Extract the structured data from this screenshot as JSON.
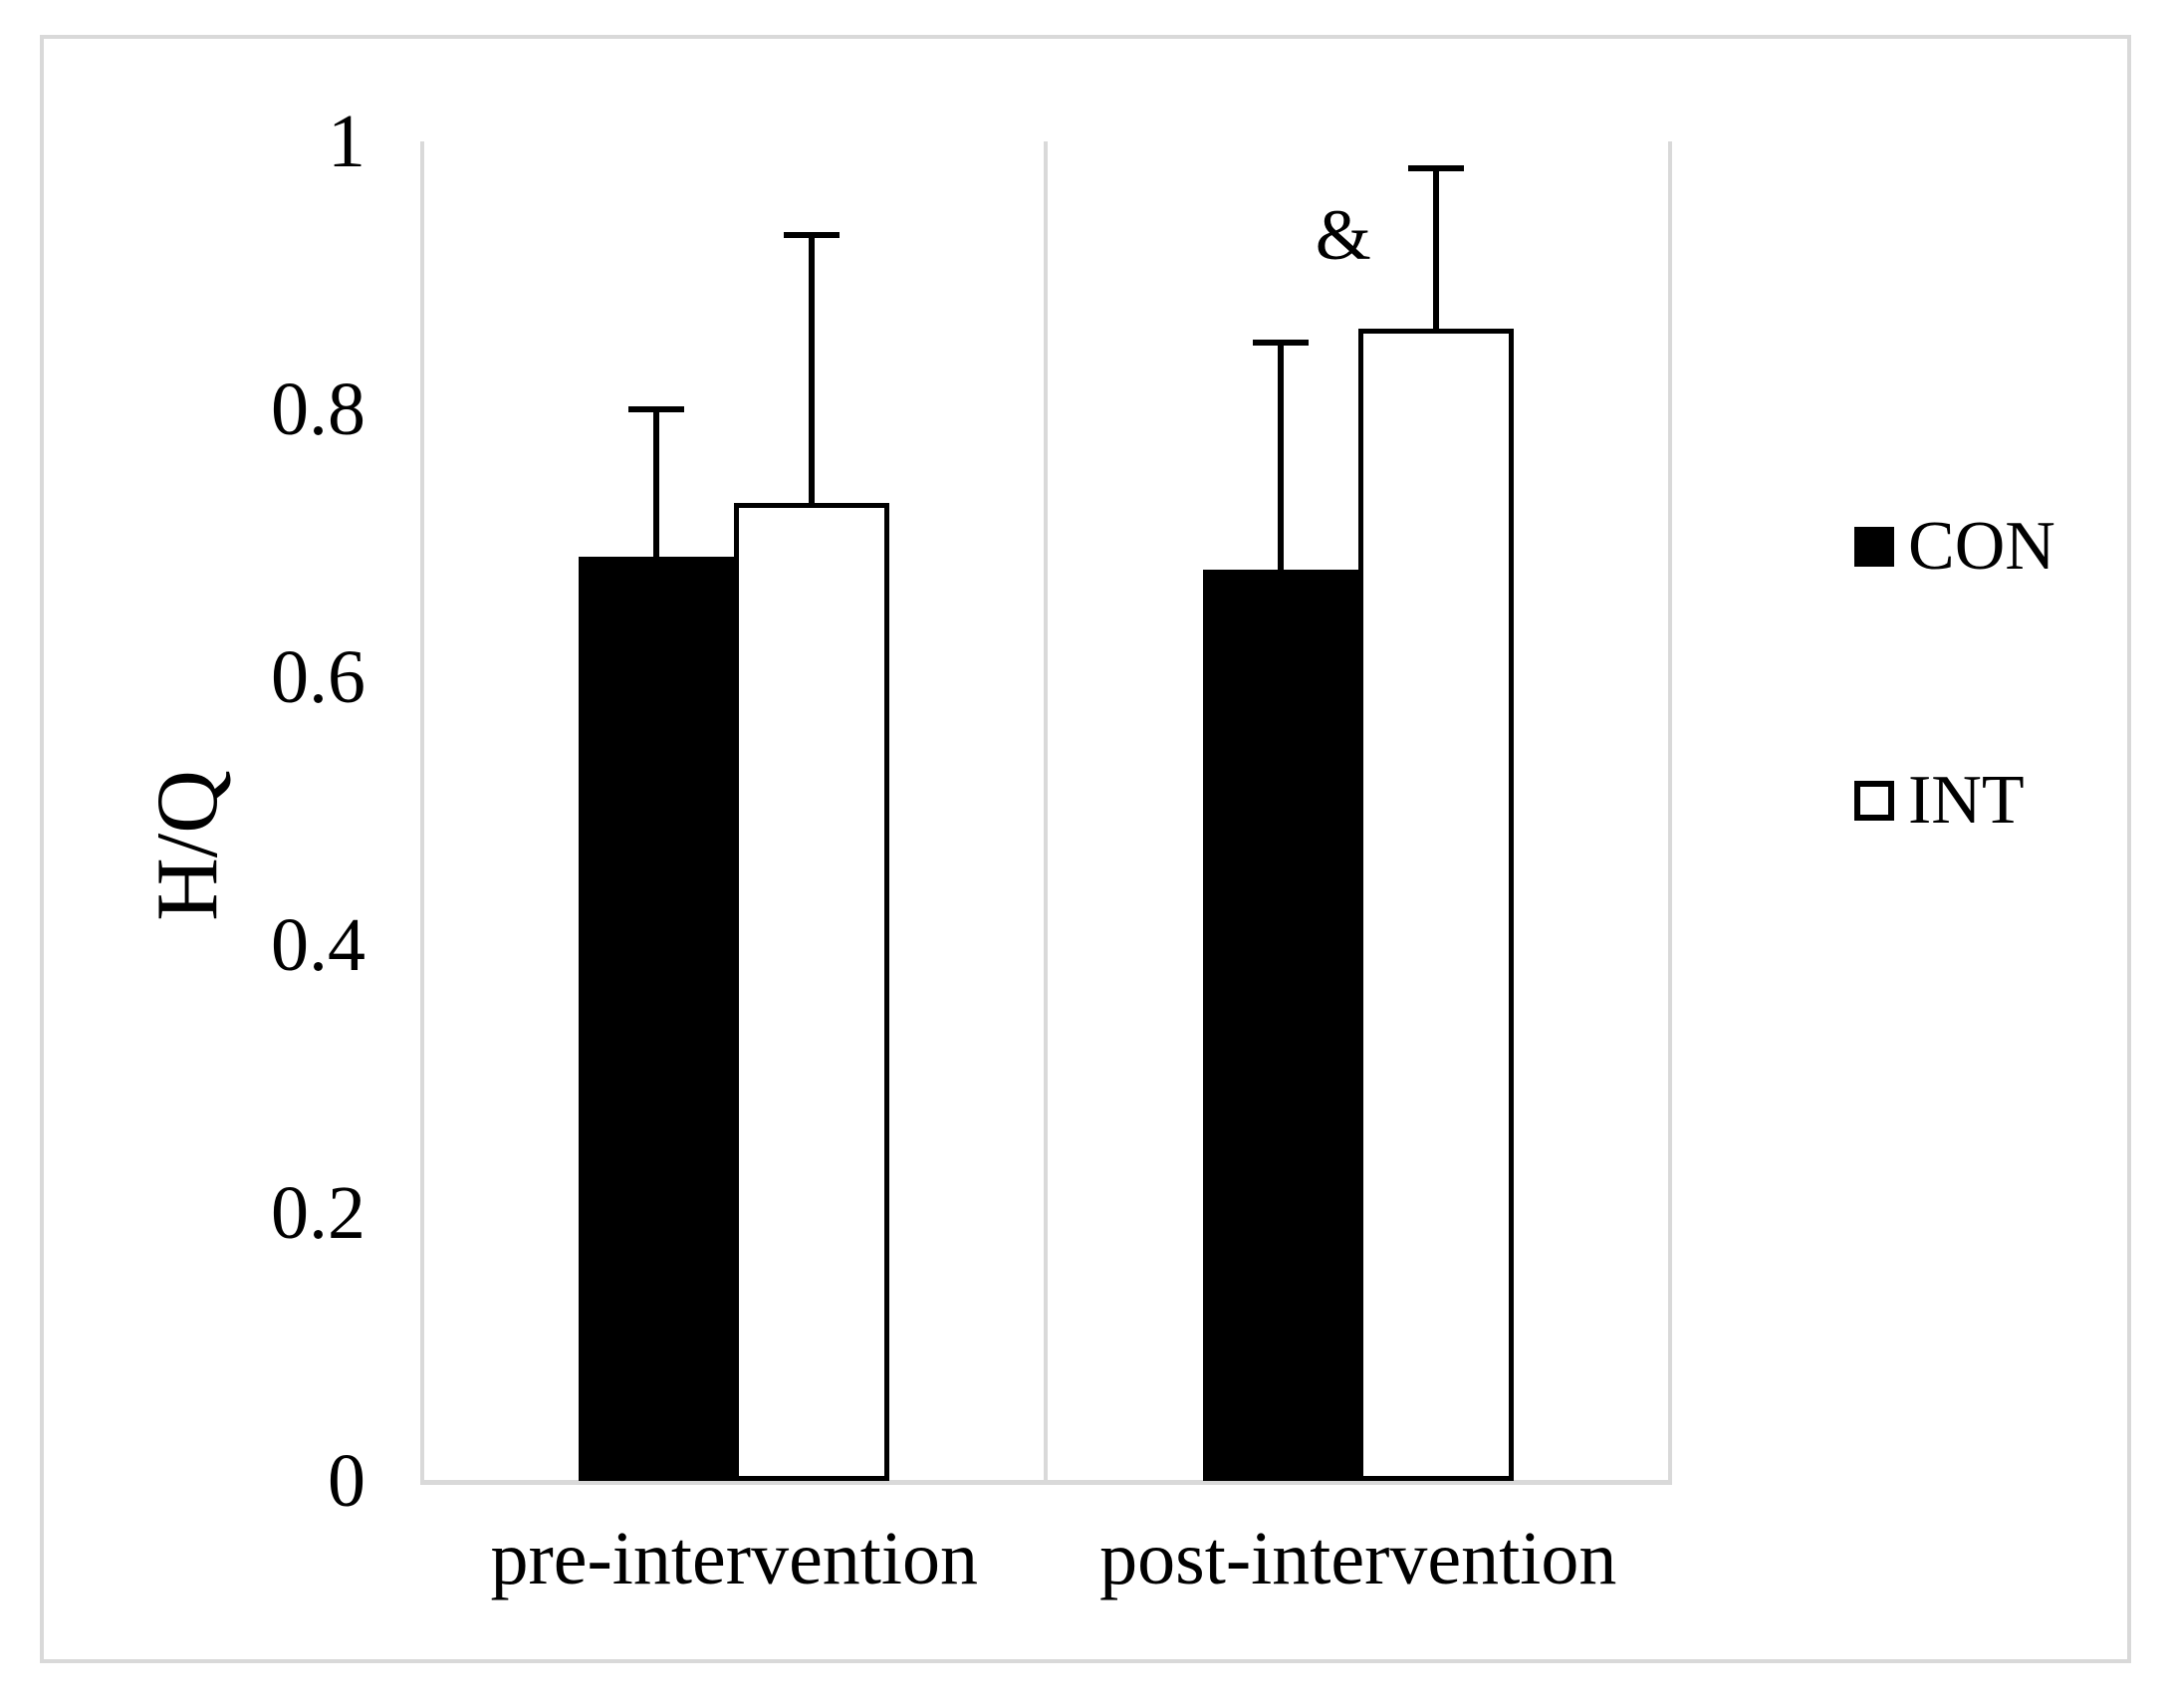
{
  "chart_data": {
    "type": "bar",
    "title": "",
    "xlabel": "",
    "ylabel": "H/Q",
    "categories": [
      "pre-intervention",
      "post-intervention"
    ],
    "series": [
      {
        "name": "CON",
        "fill": "#000000",
        "border": "#000000",
        "values": [
          0.69,
          0.68
        ],
        "error_plus": [
          0.11,
          0.17
        ]
      },
      {
        "name": "INT",
        "fill": "#ffffff",
        "border": "#000000",
        "values": [
          0.73,
          0.86
        ],
        "error_plus": [
          0.2,
          0.12
        ]
      }
    ],
    "ylim": [
      0,
      1
    ],
    "ytick_values": [
      0,
      0.2,
      0.4,
      0.6,
      0.8,
      1
    ],
    "ytick_labels": [
      "0",
      "0.2",
      "0.4",
      "0.6",
      "0.8",
      "1"
    ],
    "grid": false,
    "error_bars": "upper-only",
    "legend_position": "right",
    "annotations": [
      {
        "text": "&",
        "category_index": 1,
        "series": "INT",
        "y_value": 0.93
      }
    ]
  },
  "legend": {
    "items": [
      {
        "label": "CON",
        "fill": "#000000"
      },
      {
        "label": "INT",
        "fill": "#ffffff"
      }
    ]
  },
  "colors": {
    "axis_line": "#d9d9d9",
    "figure_border": "#d9d9d9",
    "text": "#000000"
  }
}
